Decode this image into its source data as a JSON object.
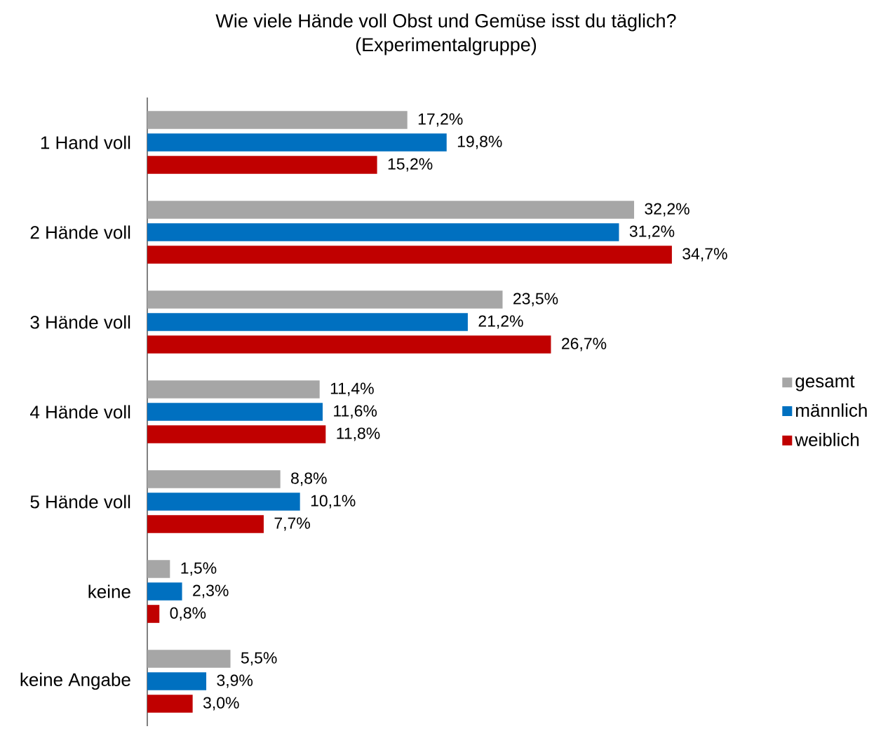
{
  "chart_data": {
    "type": "bar",
    "orientation": "horizontal",
    "title": "Wie viele Hände voll Obst und Gemüse isst du täglich?\n(Experimentalgruppe)",
    "categories": [
      "1 Hand voll",
      "2 Hände voll",
      "3 Hände voll",
      "4 Hände voll",
      "5 Hände voll",
      "keine",
      "keine Angabe"
    ],
    "series": [
      {
        "name": "gesamt",
        "color": "#a6a6a6",
        "values": [
          17.2,
          32.2,
          23.5,
          11.4,
          8.8,
          1.5,
          5.5
        ],
        "value_labels": [
          "17,2%",
          "32,2%",
          "23,5%",
          "11,4%",
          "8,8%",
          "1,5%",
          "5,5%"
        ]
      },
      {
        "name": "männlich",
        "color": "#0070c0",
        "values": [
          19.8,
          31.2,
          21.2,
          11.6,
          10.1,
          2.3,
          3.9
        ],
        "value_labels": [
          "19,8%",
          "31,2%",
          "21,2%",
          "11,6%",
          "10,1%",
          "2,3%",
          "3,9%"
        ]
      },
      {
        "name": "weiblich",
        "color": "#c00000",
        "values": [
          15.2,
          34.7,
          26.7,
          11.8,
          7.7,
          0.8,
          3.0
        ],
        "value_labels": [
          "15,2%",
          "34,7%",
          "26,7%",
          "11,8%",
          "7,7%",
          "0,8%",
          "3,0%"
        ]
      }
    ],
    "legend": "right",
    "grid": false
  }
}
